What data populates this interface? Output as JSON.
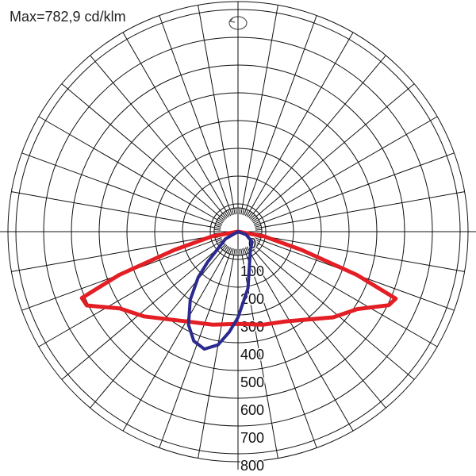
{
  "chart_data": {
    "type": "polar",
    "title": "Max=782,9 cd/klm",
    "rlim": [
      0,
      800
    ],
    "rticks": [
      0,
      100,
      200,
      300,
      400,
      500,
      600,
      700,
      800
    ],
    "series": [
      {
        "color": "#e31e24",
        "x": [
          -90,
          -80,
          -74,
          -70,
          -67,
          -64,
          -57,
          -48,
          -28,
          -15,
          0,
          15,
          28,
          48,
          57,
          64,
          67,
          70,
          74,
          80,
          90
        ],
        "values": [
          0,
          93,
          238,
          456,
          611,
          606,
          508,
          456,
          368,
          347,
          332,
          347,
          366,
          461,
          512,
          604,
          617,
          456,
          238,
          93,
          0
        ]
      },
      {
        "color": "#2b2a8f",
        "x": [
          -60,
          -45,
          -41,
          -35,
          -28,
          -22,
          -16,
          -10,
          -5,
          0,
          10,
          21,
          35,
          54,
          70,
          90
        ],
        "values": [
          52,
          155,
          219,
          300,
          380,
          425,
          440,
          414,
          363,
          309,
          207,
          117,
          78,
          63,
          31,
          0
        ]
      }
    ]
  }
}
